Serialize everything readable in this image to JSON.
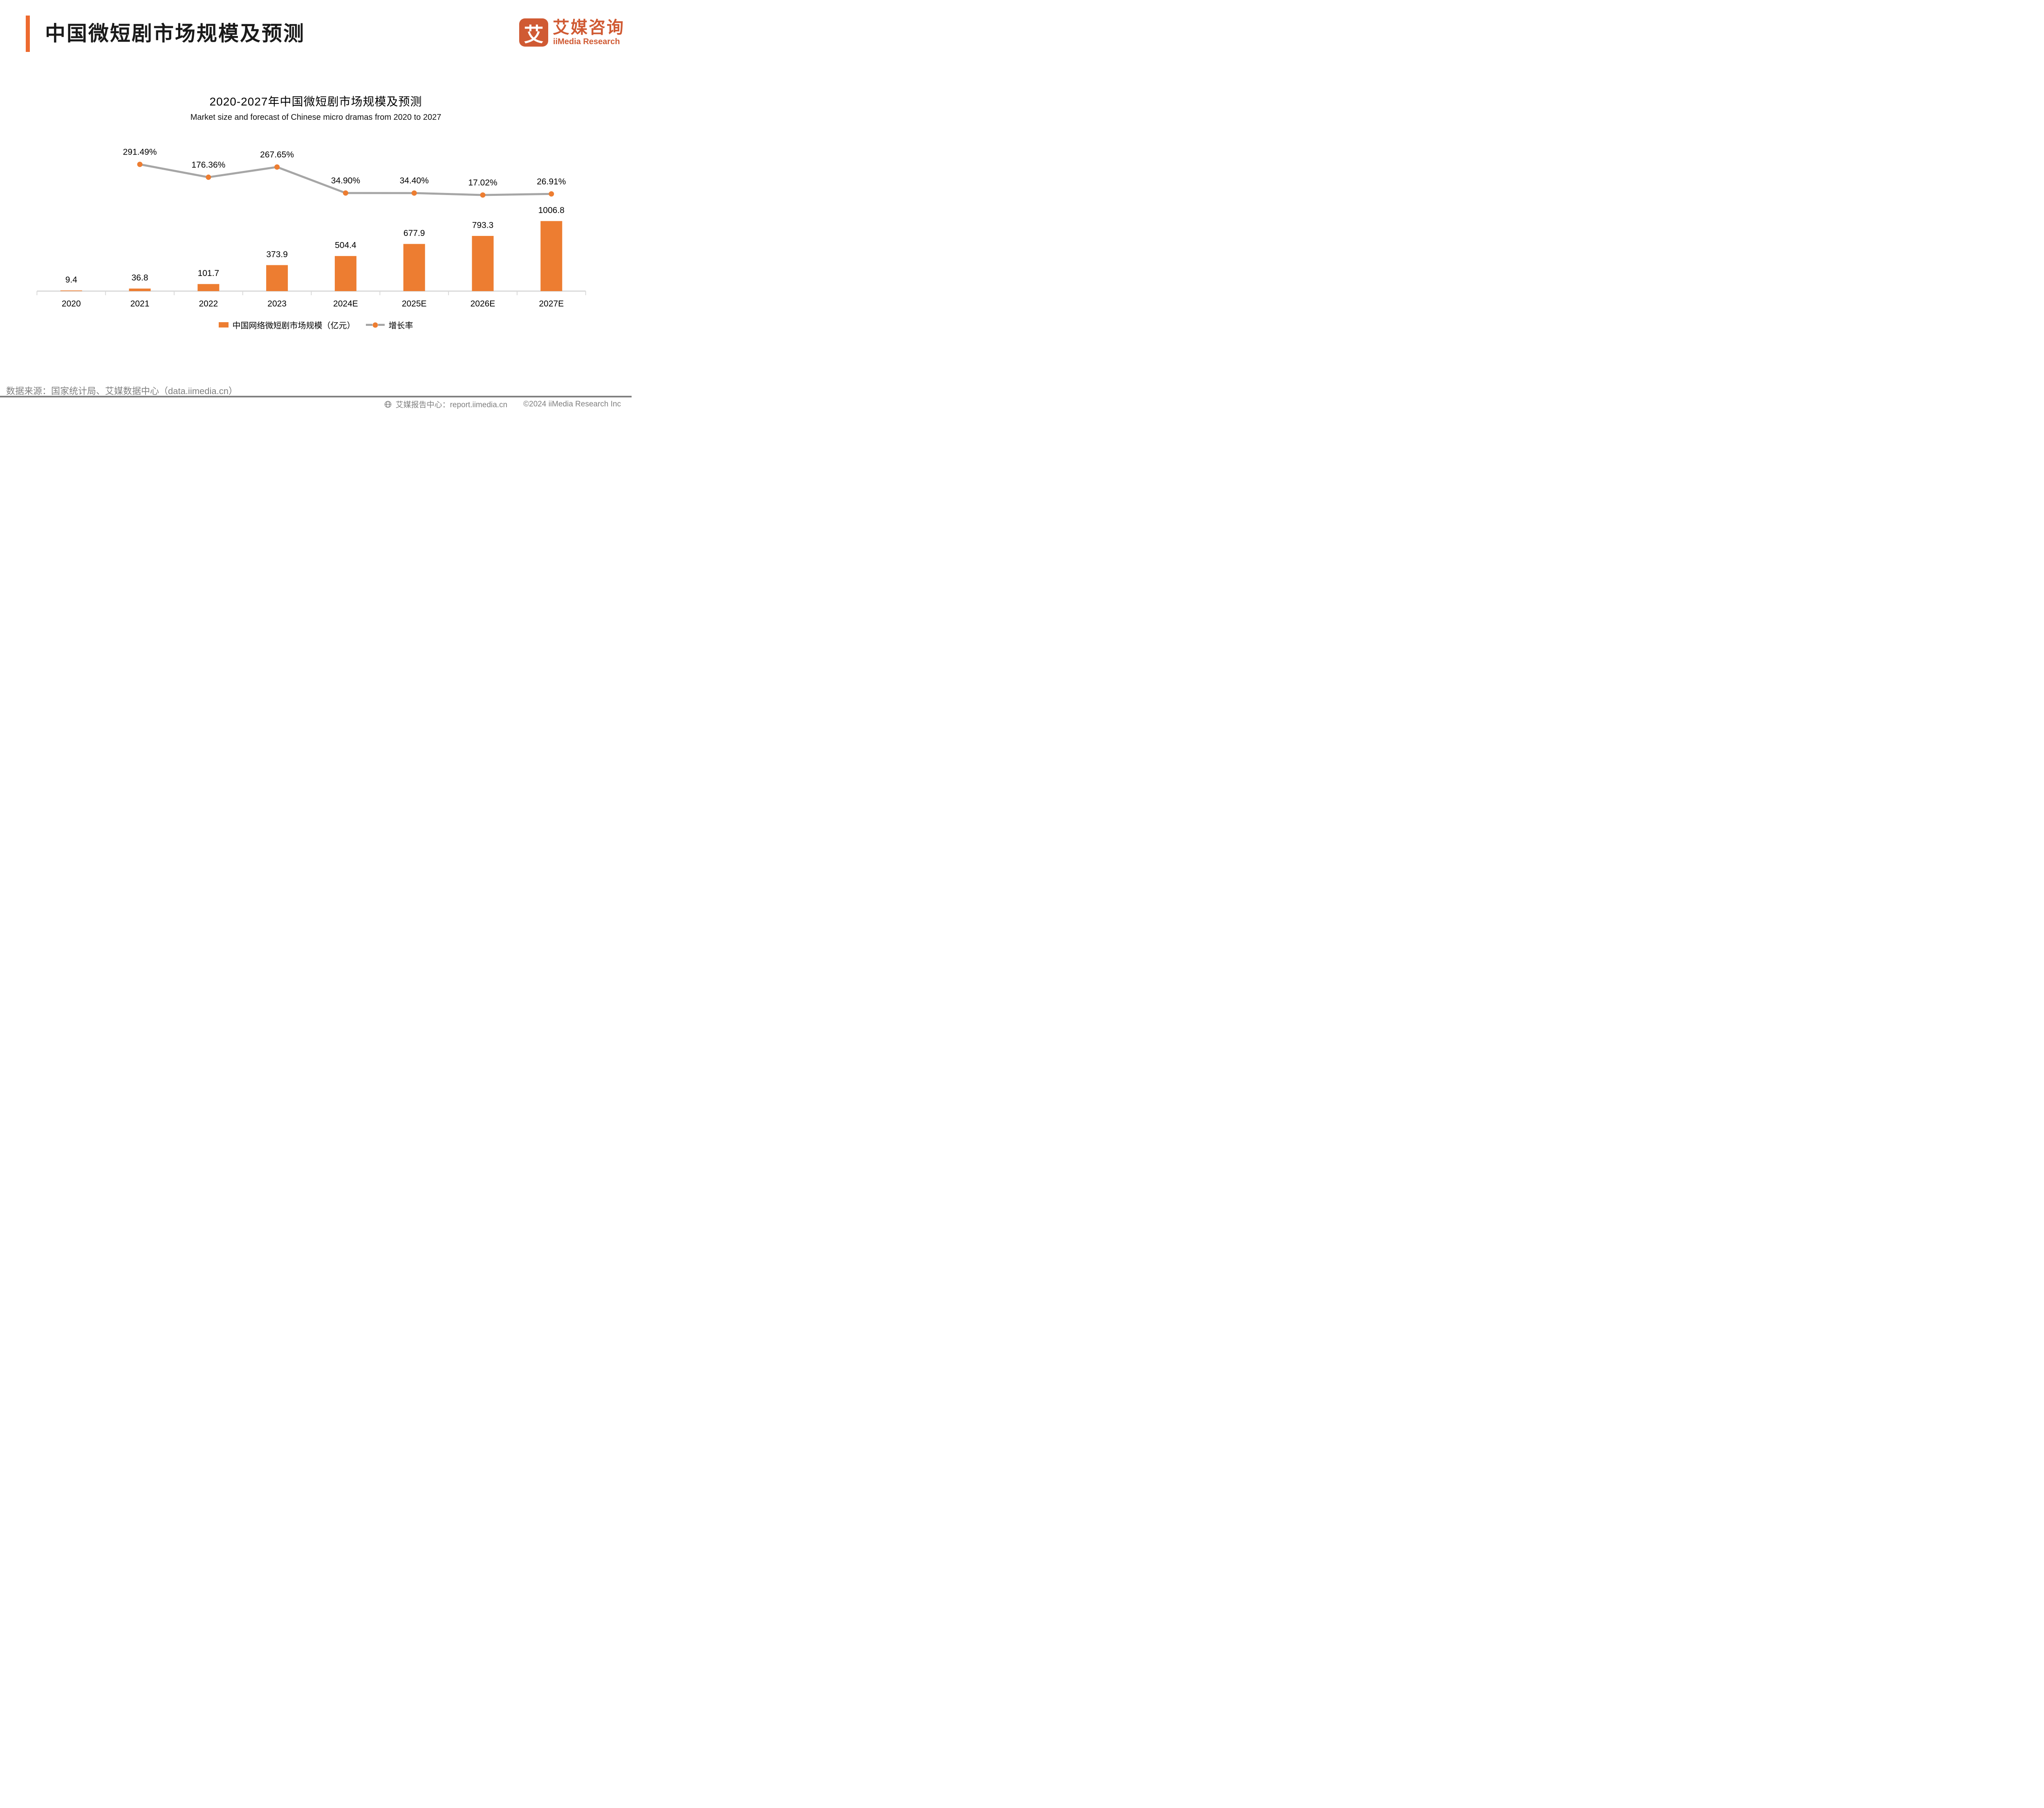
{
  "page": {
    "title": "中国微短剧市场规模及预测",
    "logo": {
      "glyph": "艾",
      "name_cn": "艾媒咨询",
      "name_en": "iiMedia Research"
    },
    "source_note": "数据来源：国家统计局、艾媒数据中心（data.iimedia.cn）",
    "footer": {
      "report_center": "艾媒报告中心：report.iimedia.cn",
      "copyright": "©2024  iiMedia Research Inc"
    }
  },
  "colors": {
    "brand_orange": "#ED6A2F",
    "logo_orange": "#D05A33",
    "bar_orange": "#ED7D31",
    "line_gray": "#A6A6A6",
    "axis_gray": "#D9D9D9",
    "text_gray": "#7F7F7F",
    "divider_gray": "#808080"
  },
  "chart_data": {
    "type": "bar",
    "title": "2020-2027年中国微短剧市场规模及预测",
    "subtitle": "Market size and forecast of Chinese micro dramas from 2020 to 2027",
    "categories": [
      "2020",
      "2021",
      "2022",
      "2023",
      "2024E",
      "2025E",
      "2026E",
      "2027E"
    ],
    "series": [
      {
        "name": "中国网络微短剧市场规模（亿元）",
        "type": "bar",
        "values": [
          9.4,
          36.8,
          101.7,
          373.9,
          504.4,
          677.9,
          793.3,
          1006.8
        ],
        "labels": [
          "9.4",
          "36.8",
          "101.7",
          "373.9",
          "504.4",
          "677.9",
          "793.3",
          "1006.8"
        ]
      },
      {
        "name": "增长率",
        "type": "line",
        "values": [
          null,
          291.49,
          176.36,
          267.65,
          34.9,
          34.4,
          17.02,
          26.91
        ],
        "labels": [
          "",
          "291.49%",
          "176.36%",
          "267.65%",
          "34.90%",
          "34.40%",
          "17.02%",
          "26.91%"
        ]
      }
    ],
    "ylabel": "",
    "xlabel": "",
    "grid": false,
    "value_labels_shown": true,
    "legend_position": "bottom"
  }
}
